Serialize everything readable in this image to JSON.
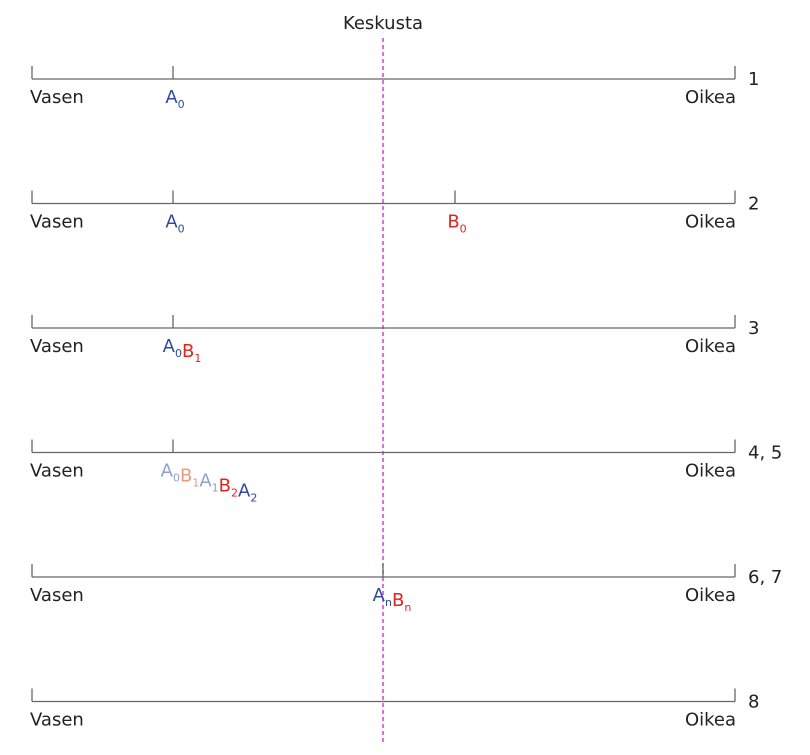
{
  "center_label": "Keskusta",
  "colors": {
    "axis": "#666666",
    "center_line": "#cc33cc",
    "blue": "#2e4a9e",
    "red": "#e0251b",
    "blue_faded": "#8f9fd0",
    "red_faded": "#e89a7e",
    "text": "#222222"
  },
  "rows": [
    {
      "step": "1",
      "left_label": "Vasen",
      "right_label": "Oikea",
      "tick": "a0",
      "labels": [
        {
          "base": "A",
          "sub": "0",
          "color": "blue"
        }
      ]
    },
    {
      "step": "2",
      "left_label": "Vasen",
      "right_label": "Oikea",
      "tick": "a0",
      "extra_tick": "b0",
      "labels": [
        {
          "base": "A",
          "sub": "0",
          "color": "blue"
        }
      ],
      "extra_labels": [
        {
          "base": "B",
          "sub": "0",
          "color": "red"
        }
      ]
    },
    {
      "step": "3",
      "left_label": "Vasen",
      "right_label": "Oikea",
      "tick": "a0",
      "labels": [
        {
          "base": "A",
          "sub": "0",
          "color": "blue"
        },
        {
          "base": "B",
          "sub": "1",
          "color": "red"
        }
      ]
    },
    {
      "step": "4, 5",
      "left_label": "Vasen",
      "right_label": "Oikea",
      "tick": "a0",
      "labels": [
        {
          "base": "A",
          "sub": "0",
          "color": "blue_faded"
        },
        {
          "base": "B",
          "sub": "1",
          "color": "red_faded"
        },
        {
          "base": "A",
          "sub": "1",
          "color": "blue_faded"
        },
        {
          "base": "B",
          "sub": "2",
          "color": "red"
        },
        {
          "base": "A",
          "sub": "2",
          "color": "blue"
        }
      ]
    },
    {
      "step": "6, 7",
      "left_label": "Vasen",
      "right_label": "Oikea",
      "tick": "center",
      "labels": [
        {
          "base": "A",
          "sub": "n",
          "color": "blue"
        },
        {
          "base": "B",
          "sub": "n",
          "color": "red"
        }
      ]
    },
    {
      "step": "8",
      "left_label": "Vasen",
      "right_label": "Oikea",
      "tick": "none",
      "labels": []
    }
  ]
}
